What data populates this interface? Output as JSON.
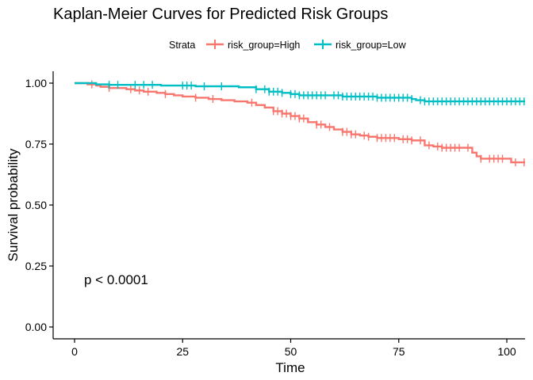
{
  "chart_data": {
    "type": "line",
    "title": "Kaplan-Meier Curves for Predicted Risk Groups",
    "xlabel": "Time",
    "ylabel": "Survival probability",
    "xlim": [
      0,
      105
    ],
    "ylim": [
      0,
      1
    ],
    "x_ticks": [
      0,
      25,
      50,
      75,
      100
    ],
    "x_tick_labels": [
      "0",
      "25",
      "50",
      "75",
      "100"
    ],
    "y_ticks": [
      0,
      0.25,
      0.5,
      0.75,
      1
    ],
    "y_tick_labels": [
      "0.00",
      "0.25",
      "0.50",
      "0.75",
      "1.00"
    ],
    "grid": false,
    "legend": {
      "title": "Strata",
      "placement": "top"
    },
    "annotation": "p < 0.0001",
    "series": [
      {
        "name": "risk_group=High",
        "color": "#F8766D",
        "step_points": [
          [
            0,
            1.0
          ],
          [
            3,
            0.995
          ],
          [
            5,
            0.99
          ],
          [
            6,
            0.985
          ],
          [
            8,
            0.98
          ],
          [
            12,
            0.975
          ],
          [
            14,
            0.97
          ],
          [
            16,
            0.965
          ],
          [
            19,
            0.96
          ],
          [
            21,
            0.955
          ],
          [
            23,
            0.95
          ],
          [
            25,
            0.945
          ],
          [
            28,
            0.94
          ],
          [
            31,
            0.935
          ],
          [
            34,
            0.93
          ],
          [
            37,
            0.925
          ],
          [
            40,
            0.92
          ],
          [
            42,
            0.91
          ],
          [
            44,
            0.9
          ],
          [
            46,
            0.885
          ],
          [
            48,
            0.875
          ],
          [
            50,
            0.865
          ],
          [
            52,
            0.855
          ],
          [
            54,
            0.84
          ],
          [
            56,
            0.83
          ],
          [
            58,
            0.82
          ],
          [
            60,
            0.81
          ],
          [
            62,
            0.8
          ],
          [
            64,
            0.79
          ],
          [
            66,
            0.785
          ],
          [
            68,
            0.78
          ],
          [
            70,
            0.775
          ],
          [
            75,
            0.77
          ],
          [
            78,
            0.765
          ],
          [
            81,
            0.745
          ],
          [
            83,
            0.74
          ],
          [
            85,
            0.735
          ],
          [
            92,
            0.715
          ],
          [
            93,
            0.7
          ],
          [
            94,
            0.69
          ],
          [
            101,
            0.675
          ],
          [
            105,
            0.675
          ]
        ],
        "censor_times": [
          4,
          8,
          13,
          15,
          17,
          21,
          28,
          32,
          41,
          46,
          47,
          48,
          49,
          50,
          51,
          52,
          53,
          56,
          57,
          59,
          62,
          63,
          64,
          65,
          67,
          68,
          70,
          71,
          72,
          73,
          74,
          76,
          77,
          78,
          80,
          82,
          84,
          85,
          86,
          87,
          88,
          89,
          91,
          94,
          96,
          97,
          98,
          99,
          102,
          104
        ]
      },
      {
        "name": "risk_group=Low",
        "color": "#00BFC4",
        "step_points": [
          [
            0,
            1.0
          ],
          [
            5,
            0.995
          ],
          [
            8,
            0.993
          ],
          [
            20,
            0.99
          ],
          [
            28,
            0.987
          ],
          [
            38,
            0.983
          ],
          [
            42,
            0.975
          ],
          [
            45,
            0.965
          ],
          [
            48,
            0.96
          ],
          [
            50,
            0.955
          ],
          [
            52,
            0.95
          ],
          [
            62,
            0.945
          ],
          [
            70,
            0.94
          ],
          [
            78,
            0.935
          ],
          [
            79,
            0.93
          ],
          [
            81,
            0.925
          ],
          [
            105,
            0.925
          ]
        ],
        "censor_times": [
          8,
          10,
          14,
          16,
          18,
          25,
          26,
          27,
          30,
          34,
          42,
          44,
          45,
          46,
          47,
          48,
          50,
          51,
          52,
          53,
          54,
          55,
          56,
          57,
          58,
          60,
          61,
          62,
          63,
          64,
          65,
          66,
          67,
          68,
          69,
          70,
          71,
          72,
          73,
          74,
          75,
          76,
          77,
          78,
          80,
          81,
          82,
          83,
          84,
          85,
          86,
          87,
          88,
          89,
          90,
          91,
          92,
          93,
          94,
          95,
          96,
          97,
          98,
          99,
          100,
          101,
          102,
          103,
          104
        ]
      }
    ]
  }
}
